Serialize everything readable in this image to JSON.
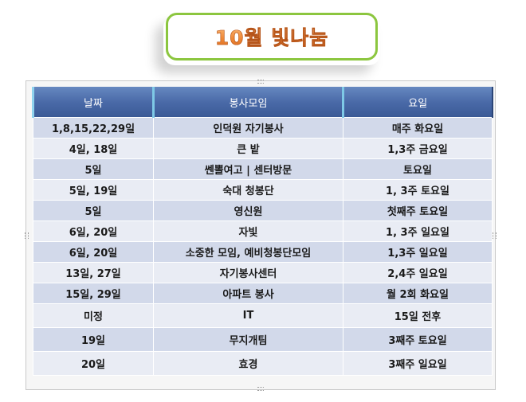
{
  "title": "10월 빛나눔",
  "table": {
    "headers": [
      "날짜",
      "봉사모임",
      "요일"
    ],
    "rows": [
      [
        "1,8,15,22,29일",
        "인덕원 자기봉사",
        "매주 화요일"
      ],
      [
        "4일, 18일",
        "큰 밭",
        "1,3주 금요일"
      ],
      [
        "5일",
        "쎈뽈여고 | 센터방문",
        "토요일"
      ],
      [
        "5일, 19일",
        "숙대 청봉단",
        "1, 3주 토요일"
      ],
      [
        "5일",
        "영신원",
        "첫째주 토요일"
      ],
      [
        "6일, 20일",
        "자빛",
        "1, 3주 일요일"
      ],
      [
        "6일, 20일",
        "소중한 모임, 예비청봉단모임",
        "1,3주 일요일"
      ],
      [
        "13일, 27일",
        "자기봉사센터",
        "2,4주 일요일"
      ],
      [
        "15일, 29일",
        "아파트 봉사",
        "월 2회 화요일"
      ],
      [
        "미정",
        "IT",
        "15일 전후"
      ],
      [
        "19일",
        "무지개팀",
        "3째주 토요일"
      ],
      [
        "20일",
        "효경",
        "3째주 일요일"
      ]
    ]
  },
  "colors": {
    "banner_border": "#8cc63f",
    "title_orange": "#f08a38",
    "header_blue": "#4a6aa8",
    "row_odd": "#d2d9ea",
    "row_even": "#e9ecf4"
  }
}
